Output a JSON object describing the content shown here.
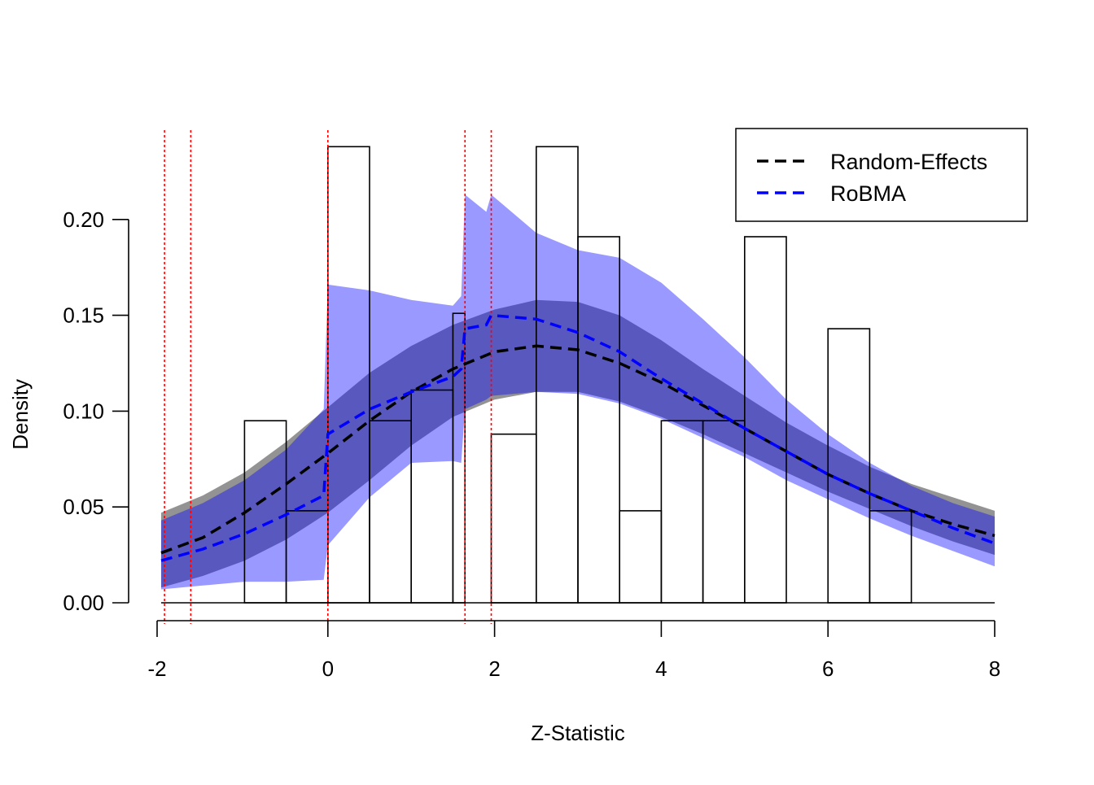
{
  "chart_data": {
    "type": "area",
    "xlabel": "Z-Statistic",
    "ylabel": "Density",
    "xlim": [
      -2,
      8
    ],
    "ylim": [
      0,
      0.2
    ],
    "x_ticks": [
      "-2",
      "0",
      "2",
      "4",
      "6",
      "8"
    ],
    "y_ticks": [
      "0.00",
      "0.05",
      "0.10",
      "0.15",
      "0.20"
    ],
    "grid": false,
    "legend_position": "top-right",
    "histogram": {
      "bin_edges": [
        -1.0,
        -0.5,
        0.0,
        0.5,
        1.0,
        1.5,
        1.645,
        1.96,
        2.5,
        3.0,
        3.5,
        4.0,
        4.5,
        5.0,
        5.5,
        6.0,
        6.5,
        7.0
      ],
      "densities": [
        0.095,
        0.048,
        0.238,
        0.095,
        0.111,
        0.151,
        0,
        0.088,
        0.238,
        0.191,
        0.048,
        0.095,
        0.095,
        0.191,
        0,
        0.143,
        0.048
      ]
    },
    "cutoff_lines": [
      -1.96,
      -1.645,
      0,
      1.645,
      1.96
    ],
    "series": [
      {
        "name": "Random-Effects",
        "color": "#000000",
        "x": [
          -2.0,
          -1.5,
          -1.0,
          -0.5,
          0.0,
          0.5,
          1.0,
          1.5,
          2.0,
          2.5,
          3.0,
          3.5,
          4.0,
          4.5,
          5.0,
          5.5,
          6.0,
          6.5,
          7.0,
          7.5,
          8.0
        ],
        "mean": [
          0.026,
          0.034,
          0.047,
          0.062,
          0.078,
          0.095,
          0.11,
          0.122,
          0.131,
          0.134,
          0.132,
          0.125,
          0.115,
          0.103,
          0.091,
          0.079,
          0.067,
          0.057,
          0.048,
          0.041,
          0.035
        ],
        "lower": [
          0.008,
          0.014,
          0.022,
          0.033,
          0.047,
          0.064,
          0.082,
          0.097,
          0.106,
          0.11,
          0.11,
          0.105,
          0.097,
          0.088,
          0.078,
          0.068,
          0.058,
          0.049,
          0.04,
          0.032,
          0.025
        ],
        "upper": [
          0.047,
          0.056,
          0.068,
          0.084,
          0.102,
          0.12,
          0.134,
          0.145,
          0.153,
          0.158,
          0.157,
          0.15,
          0.137,
          0.122,
          0.108,
          0.094,
          0.082,
          0.071,
          0.062,
          0.055,
          0.048
        ]
      },
      {
        "name": "RoBMA",
        "color": "#0000ff",
        "x": [
          -2.0,
          -1.5,
          -1.0,
          -0.5,
          -0.05,
          0.0,
          0.5,
          1.0,
          1.5,
          1.6,
          1.645,
          1.9,
          1.96,
          2.5,
          3.0,
          3.5,
          4.0,
          4.5,
          5.0,
          5.5,
          6.0,
          6.5,
          7.0,
          7.5,
          8.0
        ],
        "mean": [
          0.022,
          0.028,
          0.036,
          0.046,
          0.056,
          0.088,
          0.101,
          0.11,
          0.118,
          0.122,
          0.143,
          0.145,
          0.15,
          0.148,
          0.141,
          0.131,
          0.117,
          0.104,
          0.091,
          0.079,
          0.067,
          0.057,
          0.048,
          0.039,
          0.031
        ],
        "lower": [
          0.007,
          0.009,
          0.011,
          0.011,
          0.012,
          0.03,
          0.055,
          0.073,
          0.074,
          0.073,
          0.101,
          0.106,
          0.108,
          0.11,
          0.109,
          0.104,
          0.096,
          0.086,
          0.076,
          0.064,
          0.054,
          0.044,
          0.035,
          0.027,
          0.019
        ],
        "upper": [
          0.043,
          0.052,
          0.064,
          0.08,
          0.101,
          0.166,
          0.163,
          0.158,
          0.155,
          0.16,
          0.213,
          0.204,
          0.213,
          0.193,
          0.184,
          0.18,
          0.167,
          0.148,
          0.128,
          0.106,
          0.088,
          0.073,
          0.061,
          0.052,
          0.045
        ]
      }
    ]
  }
}
